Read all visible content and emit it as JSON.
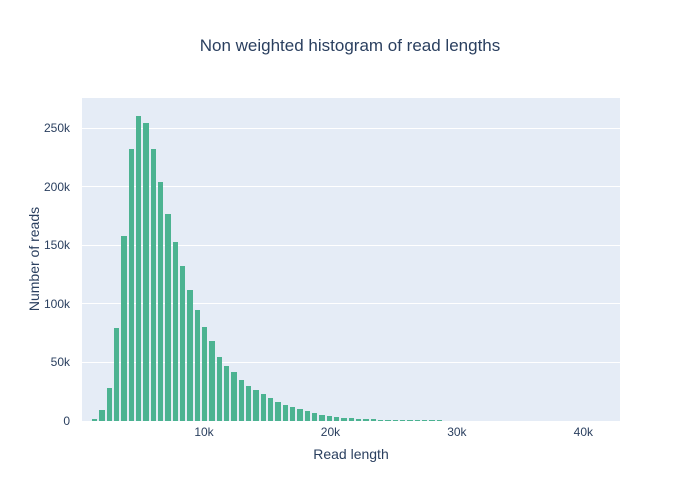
{
  "colors": {
    "bar": "#4cb391",
    "plot_background": "#e5ecf6",
    "grid": "#ffffff",
    "text": "#2a3f5f",
    "paper_background": "#ffffff"
  },
  "chart_data": {
    "type": "bar",
    "title": "Non weighted histogram of read lengths",
    "xlabel": "Read length",
    "ylabel": "Number of reads",
    "xlim": [
      350,
      42900
    ],
    "ylim": [
      0,
      275600
    ],
    "x_tick_values": [
      10000,
      20000,
      30000,
      40000
    ],
    "x_tick_labels": [
      "10k",
      "20k",
      "30k",
      "40k"
    ],
    "y_tick_values": [
      0,
      50000,
      100000,
      150000,
      200000,
      250000
    ],
    "y_tick_labels": [
      "0",
      "50k",
      "100k",
      "150k",
      "200k",
      "250k"
    ],
    "grid": "horizontal-only",
    "legend": false,
    "bin_start": 1150,
    "bin_size": 580,
    "bar_fill_ratio": 0.72,
    "values": [
      2000,
      9000,
      28000,
      79000,
      158000,
      232000,
      260000,
      254000,
      232000,
      204000,
      177000,
      153000,
      132000,
      112000,
      95000,
      80000,
      68000,
      55000,
      47000,
      42000,
      35000,
      30000,
      26500,
      23000,
      19500,
      16500,
      14000,
      12000,
      10000,
      8300,
      6600,
      5400,
      4300,
      3400,
      2800,
      2300,
      1900,
      1600,
      1300,
      1100,
      900,
      800,
      700,
      600,
      500,
      450,
      400,
      350
    ]
  }
}
